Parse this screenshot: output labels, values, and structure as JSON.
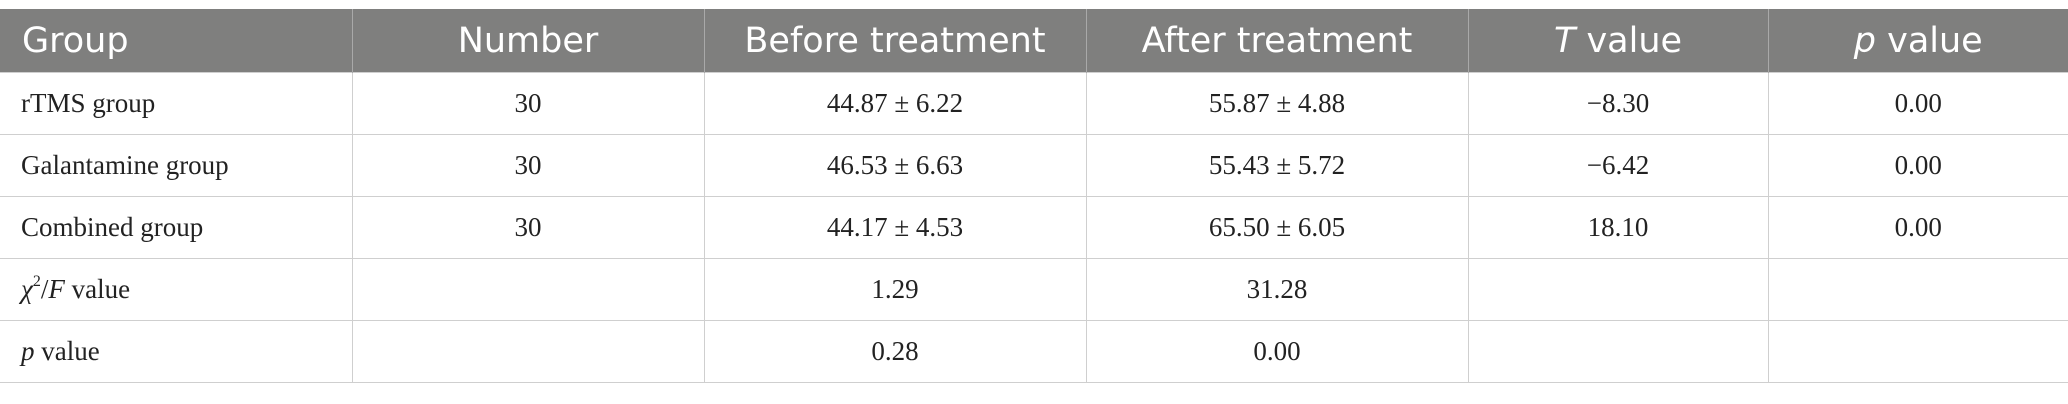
{
  "table": {
    "headers": [
      {
        "pre": "Group",
        "ital": "",
        "post": ""
      },
      {
        "pre": "Number",
        "ital": "",
        "post": ""
      },
      {
        "pre": "Before treatment",
        "ital": "",
        "post": ""
      },
      {
        "pre": "After treatment",
        "ital": "",
        "post": ""
      },
      {
        "pre": "",
        "ital": "T",
        "post": " value"
      },
      {
        "pre": "",
        "ital": "p",
        "post": " value"
      }
    ],
    "rows": [
      [
        "rTMS group",
        "30",
        "44.87 ± 6.22",
        "55.87 ± 4.88",
        "−8.30",
        "0.00"
      ],
      [
        "Galantamine group",
        "30",
        "46.53 ± 6.63",
        "55.43 ± 5.72",
        "−6.42",
        "0.00"
      ],
      [
        "Combined group",
        "30",
        "44.17 ± 4.53",
        "65.50 ± 6.05",
        "18.10",
        "0.00"
      ],
      [
        "",
        "",
        "1.29",
        "31.28",
        "",
        ""
      ],
      [
        "",
        "",
        "0.28",
        "0.00",
        "",
        ""
      ]
    ],
    "chi_row_label": {
      "chi": "χ",
      "sup": "2",
      "slash": "/",
      "f": "F",
      "rest": " value"
    },
    "p_row_label": {
      "p": "p",
      "rest": " value"
    }
  }
}
